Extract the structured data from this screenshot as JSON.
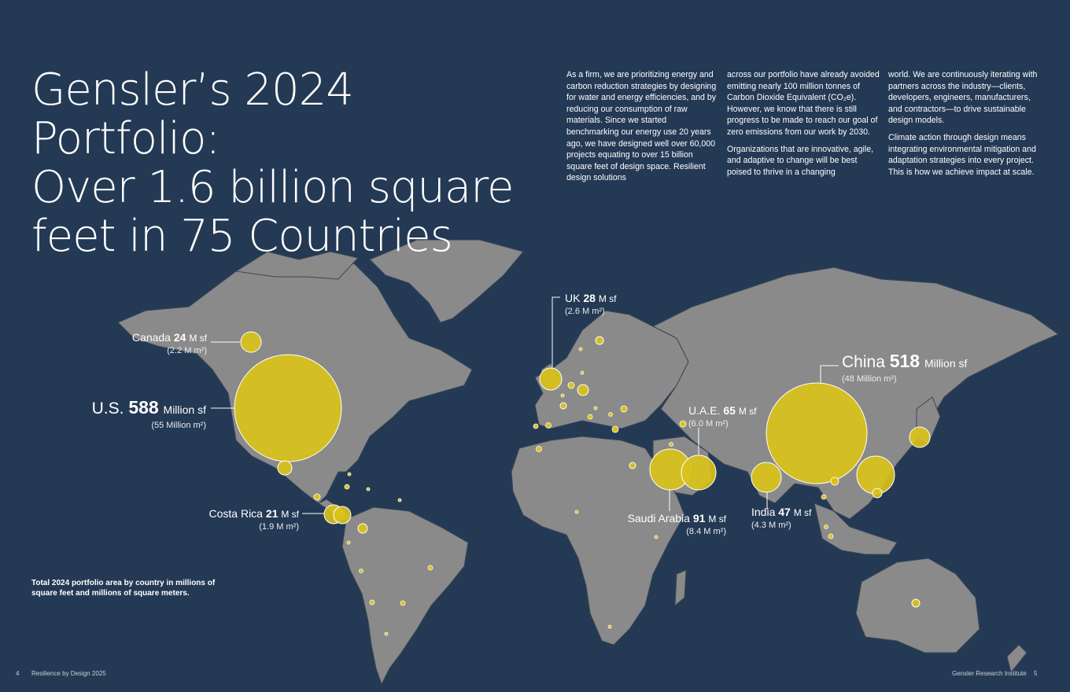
{
  "title_lines": [
    "Gensler’s 2024 Portfolio:",
    "Over 1.6 billion square",
    "feet in 75 Countries"
  ],
  "body_columns": [
    [
      "As a firm, we are prioritizing energy and carbon reduction strategies by designing for water and energy efficiencies, and by reducing our consumption of raw materials. Since we started benchmarking our energy use 20 years ago, we have designed well over 60,000 projects equating to over 15 billion square feet of design space. Resilient design solutions"
    ],
    [
      "across our portfolio have already avoided emitting nearly 100 million tonnes of Carbon Dioxide Equivalent (CO₂e). However, we know that there is still progress to be made to reach our goal of zero emissions from our work by 2030.",
      "Organizations that are innovative, agile, and adaptive to change will be best poised to thrive in a changing"
    ],
    [
      "world. We are continuously iterating with partners across the industry—clients, developers, engineers, manufacturers, and contractors—to drive sustainable design models.",
      "Climate action through design means integrating environmental mitigation and adaptation strategies into every project. This is how we achieve impact at scale."
    ]
  ],
  "caption": "Total 2024 portfolio area by country in millions of square feet and millions of square meters.",
  "footer": {
    "left_page": "4",
    "left_text": "Resilience by Design 2025",
    "right_text": "Gensler Research Institute",
    "right_page": "5"
  },
  "colors": {
    "background": "#243954",
    "land": "#8a8a8a",
    "bubble": "#d9c21a",
    "bubble_stroke": "#ffffff"
  },
  "countries": [
    {
      "name": "U.S.",
      "value": "588",
      "unit": "Million sf",
      "metric": "(55 Million m²)",
      "sqft_millions": 588,
      "size": "big"
    },
    {
      "name": "China",
      "value": "518",
      "unit": "Million sf",
      "metric": "(48 Million m²)",
      "sqft_millions": 518,
      "size": "big"
    },
    {
      "name": "Saudi Arabia",
      "value": "91",
      "unit": "M sf",
      "metric": "(8.4 M m²)",
      "sqft_millions": 91,
      "size": "small"
    },
    {
      "name": "U.A.E.",
      "value": "65",
      "unit": "M sf",
      "metric": "(6.0 M m²)",
      "sqft_millions": 65,
      "size": "small"
    },
    {
      "name": "India",
      "value": "47",
      "unit": "M sf",
      "metric": "(4.3 M m²)",
      "sqft_millions": 47,
      "size": "small"
    },
    {
      "name": "UK",
      "value": "28",
      "unit": "M sf",
      "metric": "(2.6 M m²)",
      "sqft_millions": 28,
      "size": "small"
    },
    {
      "name": "Canada",
      "value": "24",
      "unit": "M sf",
      "metric": "(2.2 M m²)",
      "sqft_millions": 24,
      "size": "small"
    },
    {
      "name": "Costa Rica",
      "value": "21",
      "unit": "M sf",
      "metric": "(1.9 M m²)",
      "sqft_millions": 21,
      "size": "small"
    }
  ]
}
